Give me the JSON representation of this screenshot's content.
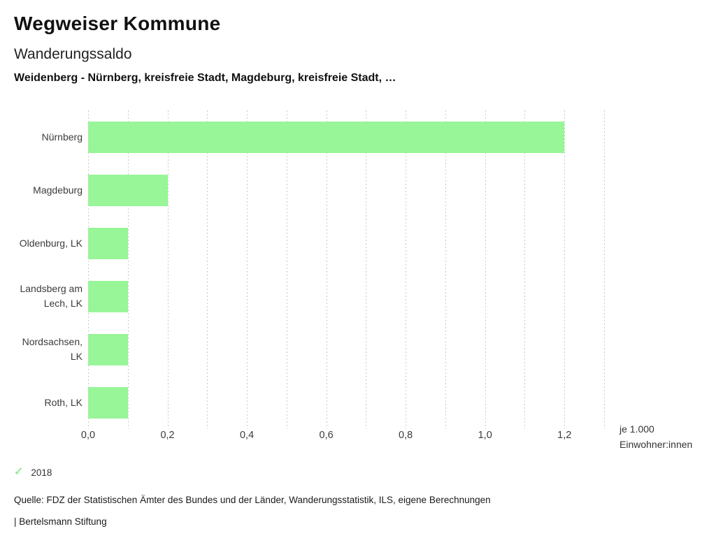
{
  "header": {
    "app_title": "Wegweiser Kommune",
    "chart_title": "Wanderungssaldo",
    "chart_subtitle": "Weidenberg - Nürnberg, kreisfreie Stadt, Magdeburg, kreisfreie Stadt, …"
  },
  "chart_data": {
    "type": "bar",
    "orientation": "horizontal",
    "title": "Wanderungssaldo",
    "subtitle": "Weidenberg - Nürnberg, kreisfreie Stadt, Magdeburg, kreisfreie Stadt, …",
    "categories": [
      "Nürnberg",
      "Magdeburg",
      "Oldenburg, LK",
      "Landsberg am\nLech, LK",
      "Nordsachsen,\nLK",
      "Roth, LK"
    ],
    "series": [
      {
        "name": "2018",
        "values": [
          1.2,
          0.2,
          0.1,
          0.1,
          0.1,
          0.1
        ]
      }
    ],
    "xlim": [
      0,
      1.3
    ],
    "grid_step": 0.1,
    "grid": true,
    "x_ticks": [
      {
        "value": 0.0,
        "label": "0,0"
      },
      {
        "value": 0.2,
        "label": "0,2"
      },
      {
        "value": 0.4,
        "label": "0,4"
      },
      {
        "value": 0.6,
        "label": "0,6"
      },
      {
        "value": 0.8,
        "label": "0,8"
      },
      {
        "value": 1.0,
        "label": "1,0"
      },
      {
        "value": 1.2,
        "label": "1,2"
      }
    ],
    "unit_label": "je 1.000\nEinwohner:innen",
    "legend_position": "bottom-left",
    "colors": {
      "bar": "#98f598",
      "grid": "#c9c9c9",
      "legend_check": "#98e898"
    }
  },
  "legend": {
    "check_icon": "✓",
    "label": "2018"
  },
  "footer": {
    "source": "Quelle: FDZ der Statistischen Ämter des Bundes und der Länder, Wanderungsstatistik, ILS, eigene Berechnungen",
    "attribution": "| Bertelsmann Stiftung"
  }
}
